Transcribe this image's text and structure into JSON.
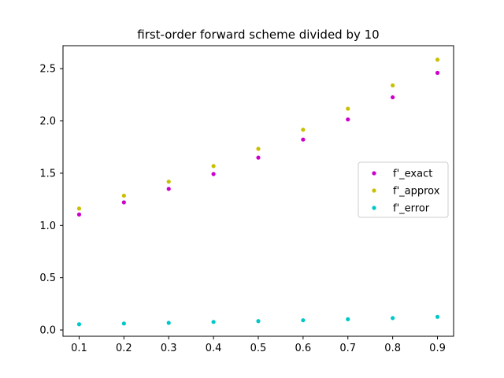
{
  "chart_data": {
    "type": "scatter",
    "title": "first-order forward scheme divided by 10",
    "xlabel": "",
    "ylabel": "",
    "xlim": [
      0.064,
      0.936
    ],
    "ylim": [
      -0.06,
      2.72
    ],
    "x_ticks": [
      0.1,
      0.2,
      0.3,
      0.4,
      0.5,
      0.6,
      0.7,
      0.8,
      0.9
    ],
    "x_tick_labels": [
      "0.1",
      "0.2",
      "0.3",
      "0.4",
      "0.5",
      "0.6",
      "0.7",
      "0.8",
      "0.9"
    ],
    "y_ticks": [
      0.0,
      0.5,
      1.0,
      1.5,
      2.0,
      2.5
    ],
    "y_tick_labels": [
      "0.0",
      "0.5",
      "1.0",
      "1.5",
      "2.0",
      "2.5"
    ],
    "grid": false,
    "legend_position": "center-right",
    "x": [
      0.1,
      0.2,
      0.3,
      0.4,
      0.5,
      0.6,
      0.7,
      0.8,
      0.9
    ],
    "series": [
      {
        "name": "f'_exact",
        "color": "#cc00cc",
        "values": [
          1.105,
          1.221,
          1.35,
          1.492,
          1.649,
          1.822,
          2.014,
          2.226,
          2.46
        ]
      },
      {
        "name": "f'_approx",
        "color": "#c8c000",
        "values": [
          1.162,
          1.285,
          1.419,
          1.568,
          1.733,
          1.916,
          2.117,
          2.34,
          2.586
        ]
      },
      {
        "name": "f'_error",
        "color": "#00c8c8",
        "values": [
          0.055,
          0.062,
          0.068,
          0.077,
          0.085,
          0.093,
          0.103,
          0.114,
          0.126
        ]
      }
    ]
  }
}
